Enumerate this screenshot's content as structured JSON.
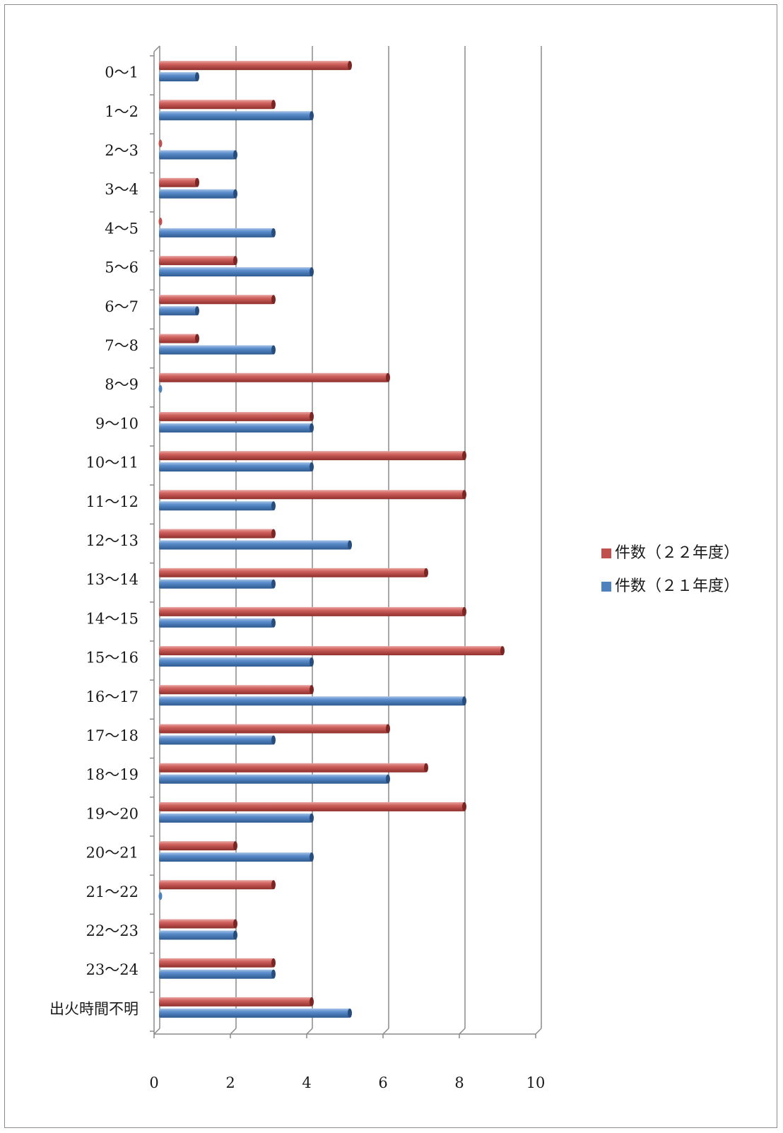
{
  "chart_data": {
    "type": "bar",
    "orientation": "horizontal",
    "style": "3d",
    "categories": [
      "0～1",
      "1～2",
      "2～3",
      "3～4",
      "4～5",
      "5～6",
      "6～7",
      "7～8",
      "8～9",
      "9～10",
      "10～11",
      "11～12",
      "12～13",
      "13～14",
      "14～15",
      "15～16",
      "16～17",
      "17～18",
      "18～19",
      "19～20",
      "20～21",
      "21～22",
      "22～23",
      "23～24",
      "出火時間不明"
    ],
    "series": [
      {
        "name": "件数（２２年度）",
        "color": "#c0504d",
        "values": [
          5,
          3,
          0,
          1,
          0,
          2,
          3,
          1,
          6,
          4,
          8,
          8,
          3,
          7,
          8,
          9,
          4,
          6,
          7,
          8,
          2,
          3,
          2,
          3,
          4
        ]
      },
      {
        "name": "件数（２１年度）",
        "color": "#4f81bd",
        "values": [
          1,
          4,
          2,
          2,
          3,
          4,
          1,
          3,
          0,
          4,
          4,
          3,
          5,
          3,
          3,
          4,
          8,
          3,
          6,
          4,
          4,
          0,
          2,
          3,
          5
        ]
      }
    ],
    "xlim": [
      0,
      10
    ],
    "xticks": [
      "0",
      "2",
      "4",
      "6",
      "8",
      "10"
    ],
    "grid": "vertical",
    "legend_position": "right"
  }
}
